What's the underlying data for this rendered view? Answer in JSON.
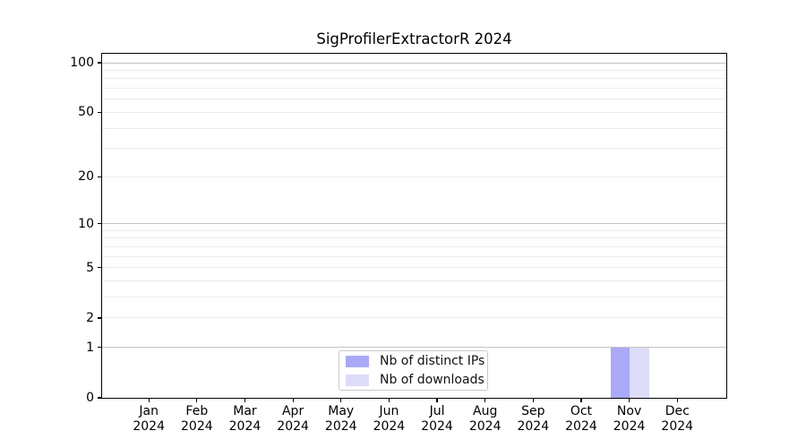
{
  "title": "SigProfilerExtractorR 2024",
  "chart_data": {
    "type": "bar",
    "title": "SigProfilerExtractorR 2024",
    "categories": [
      "Jan 2024",
      "Feb 2024",
      "Mar 2024",
      "Apr 2024",
      "May 2024",
      "Jun 2024",
      "Jul 2024",
      "Aug 2024",
      "Sep 2024",
      "Oct 2024",
      "Nov 2024",
      "Dec 2024"
    ],
    "series": [
      {
        "name": "Nb of distinct IPs",
        "color": "#a9a9f7",
        "values": [
          0,
          0,
          0,
          0,
          0,
          0,
          0,
          0,
          0,
          0,
          1,
          0
        ]
      },
      {
        "name": "Nb of downloads",
        "color": "#dcdcf9",
        "values": [
          0,
          0,
          0,
          0,
          0,
          0,
          0,
          0,
          0,
          0,
          1,
          0
        ]
      }
    ],
    "yscale": "log10(value+1)",
    "ylim": [
      0,
      113
    ],
    "ytick_labels": [
      0,
      1,
      2,
      5,
      10,
      20,
      50,
      100
    ],
    "ygrid_major": [
      1,
      10,
      100
    ],
    "ygrid_minor": [
      2,
      3,
      4,
      5,
      6,
      7,
      8,
      9,
      20,
      30,
      40,
      50,
      60,
      70,
      80,
      90
    ],
    "grid": "horizontal",
    "legend_position": "lower center",
    "xlabel": "",
    "ylabel": ""
  },
  "legend": {
    "items": [
      {
        "label": "Nb of distinct IPs",
        "color": "#a9a9f7"
      },
      {
        "label": "Nb of downloads",
        "color": "#dcdcf9"
      }
    ]
  },
  "colors": {
    "background": "#ffffff",
    "spine": "#000000",
    "grid_major": "#c3c3c3",
    "grid_minor": "#ececec",
    "bar_distinct_ips": "#a9a9f7",
    "bar_downloads": "#dcdcf9",
    "legend_border": "#c9c9c9"
  }
}
